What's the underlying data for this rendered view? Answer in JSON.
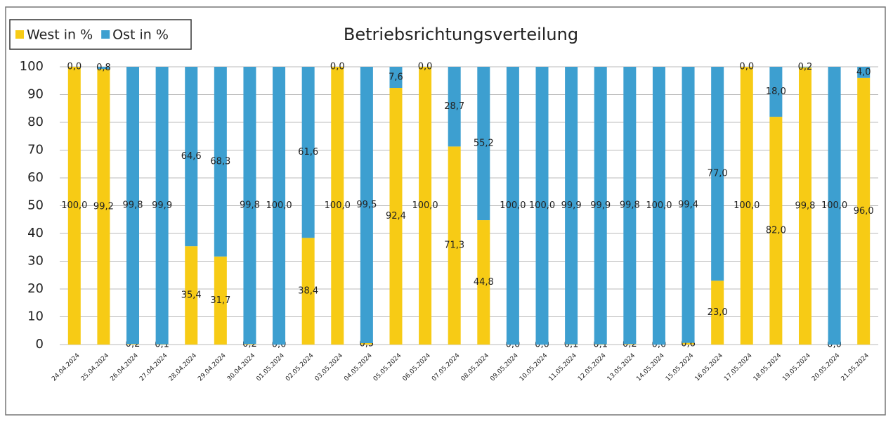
{
  "chart_data": {
    "type": "stacked_bar",
    "title": "Betriebsrichtungsverteilung",
    "categories": [
      "24.04.2024",
      "25.04.2024",
      "26.04.2024",
      "27.04.2024",
      "28.04.2024",
      "29.04.2024",
      "30.04.2024",
      "01.05.2024",
      "02.05.2024",
      "03.05.2024",
      "04.05.2024",
      "05.05.2024",
      "06.05.2024",
      "07.05.2024",
      "08.05.2024",
      "09.05.2024",
      "10.05.2024",
      "11.05.2024",
      "12.05.2024",
      "13.05.2024",
      "14.05.2024",
      "15.05.2024",
      "16.05.2024",
      "17.05.2024",
      "18.05.2024",
      "19.05.2024",
      "20.05.2024",
      "21.05.2024"
    ],
    "series": [
      {
        "name": "West in %",
        "color": "#f7cb15",
        "values": [
          100.0,
          99.2,
          0.2,
          0.1,
          35.4,
          31.7,
          0.2,
          0.0,
          38.4,
          100.0,
          0.5,
          92.4,
          100.0,
          71.3,
          44.8,
          0.0,
          0.0,
          0.1,
          0.1,
          0.2,
          0.0,
          0.6,
          23.0,
          100.0,
          82.0,
          99.8,
          0.0,
          96.0
        ],
        "value_labels": [
          "100,0",
          "99,2",
          "0,2",
          "0,1",
          "35,4",
          "31,7",
          "0,2",
          "0,0",
          "38,4",
          "100,0",
          "0,5",
          "92,4",
          "100,0",
          "71,3",
          "44,8",
          "0,0",
          "0,0",
          "0,1",
          "0,1",
          "0,2",
          "0,0",
          "0,6",
          "23,0",
          "100,0",
          "82,0",
          "99,8",
          "0,0",
          "96,0"
        ]
      },
      {
        "name": "Ost in %",
        "color": "#3d9fd0",
        "values": [
          0.0,
          0.8,
          99.8,
          99.9,
          64.6,
          68.3,
          99.8,
          100.0,
          61.6,
          0.0,
          99.5,
          7.6,
          0.0,
          28.7,
          55.2,
          100.0,
          100.0,
          99.9,
          99.9,
          99.8,
          100.0,
          99.4,
          77.0,
          0.0,
          18.0,
          0.2,
          100.0,
          4.0
        ],
        "value_labels": [
          "0,0",
          "0,8",
          "99,8",
          "99,9",
          "64,6",
          "68,3",
          "99,8",
          "100,0",
          "61,6",
          "0,0",
          "99,5",
          "7,6",
          "0,0",
          "28,7",
          "55,2",
          "100,0",
          "100,0",
          "99,9",
          "99,9",
          "99,8",
          "100,0",
          "99,4",
          "77,0",
          "0,0",
          "18,0",
          "0,2",
          "100,0",
          "4,0"
        ]
      }
    ],
    "ylim": [
      0,
      100
    ],
    "yticks": [
      0,
      10,
      20,
      30,
      40,
      50,
      60,
      70,
      80,
      90,
      100
    ],
    "grid": true,
    "legend": "top-left"
  }
}
